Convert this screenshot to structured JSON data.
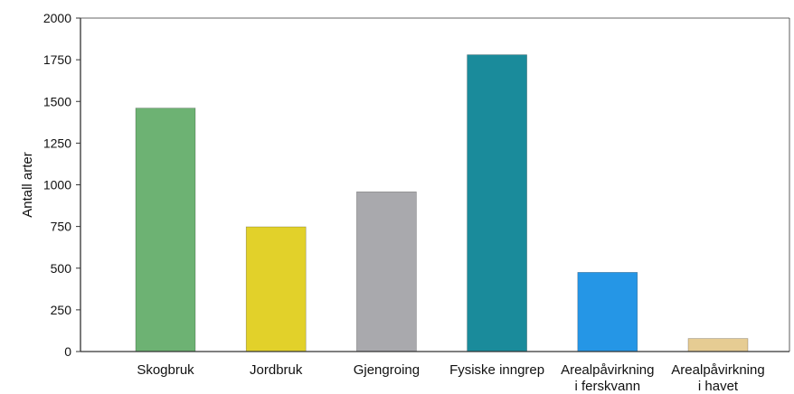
{
  "chart_data": {
    "type": "bar",
    "title": "",
    "xlabel": "",
    "ylabel": "Antall arter",
    "ylim": [
      0,
      2000
    ],
    "yticks": [
      0,
      250,
      500,
      750,
      1000,
      1250,
      1500,
      1750,
      2000
    ],
    "grid": false,
    "legend": "none",
    "categories": [
      [
        "Skogbruk"
      ],
      [
        "Jordbruk"
      ],
      [
        "Gjengroing"
      ],
      [
        "Fysiske inngrep"
      ],
      [
        "Arealpåvirkning",
        "i ferskvann"
      ],
      [
        "Arealpåvirkning",
        "i havet"
      ]
    ],
    "values": [
      1460,
      748,
      958,
      1780,
      475,
      78
    ],
    "colors": [
      "#6db273",
      "#e2d12a",
      "#a9a9ad",
      "#1a8b9b",
      "#2596e6",
      "#e6cc93"
    ],
    "axis_color": "#333333"
  }
}
